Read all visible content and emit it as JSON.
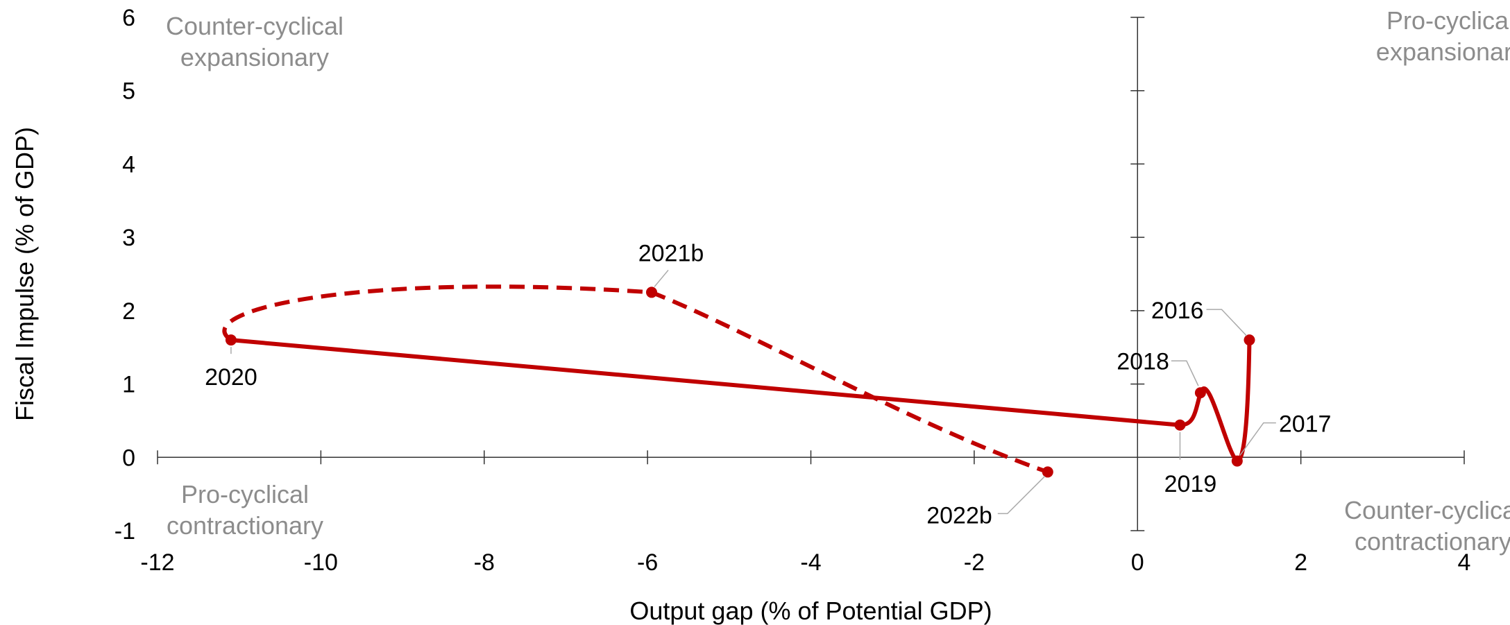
{
  "chart_data": {
    "type": "scatter",
    "xlabel": "Output gap (% of Potential GDP)",
    "ylabel": "Fiscal Impulse (% of GDP)",
    "xlim": [
      -12,
      4
    ],
    "ylim": [
      -1,
      6
    ],
    "xticks": [
      -12,
      -10,
      -8,
      -6,
      -4,
      -2,
      0,
      2,
      4
    ],
    "yticks": [
      -1,
      0,
      1,
      2,
      3,
      4,
      5,
      6
    ],
    "xtick_labels": [
      "-12",
      "-10",
      "-8",
      "-6",
      "-4",
      "-2",
      "0",
      "2",
      "4"
    ],
    "ytick_labels": [
      "-1",
      "0",
      "1",
      "2",
      "3",
      "4",
      "5",
      "6"
    ],
    "grid": false,
    "line_color": "#c00000",
    "quadrant_label_color": "#8c8c8c",
    "quadrant_labels": {
      "top_left": [
        "Counter-cyclical",
        "expansionary"
      ],
      "top_right": [
        "Pro-cyclical",
        "expansionary"
      ],
      "bottom_left": [
        "Pro-cyclical",
        "contractionary"
      ],
      "bottom_right": [
        "Counter-cyclical",
        "contractionary"
      ]
    },
    "points": [
      {
        "label": "2016",
        "x": 1.37,
        "y": 1.6
      },
      {
        "label": "2017",
        "x": 1.22,
        "y": -0.05
      },
      {
        "label": "2018",
        "x": 0.77,
        "y": 0.88
      },
      {
        "label": "2019",
        "x": 0.52,
        "y": 0.44
      },
      {
        "label": "2020",
        "x": -11.1,
        "y": 1.6
      },
      {
        "label": "2021b",
        "x": -5.95,
        "y": 2.25
      },
      {
        "label": "2022b",
        "x": -1.1,
        "y": -0.2
      }
    ],
    "series_solid": [
      "2016",
      "2017",
      "2018",
      "2019",
      "2020"
    ],
    "series_dashed": [
      "2020",
      "2021b",
      "2022b"
    ]
  }
}
